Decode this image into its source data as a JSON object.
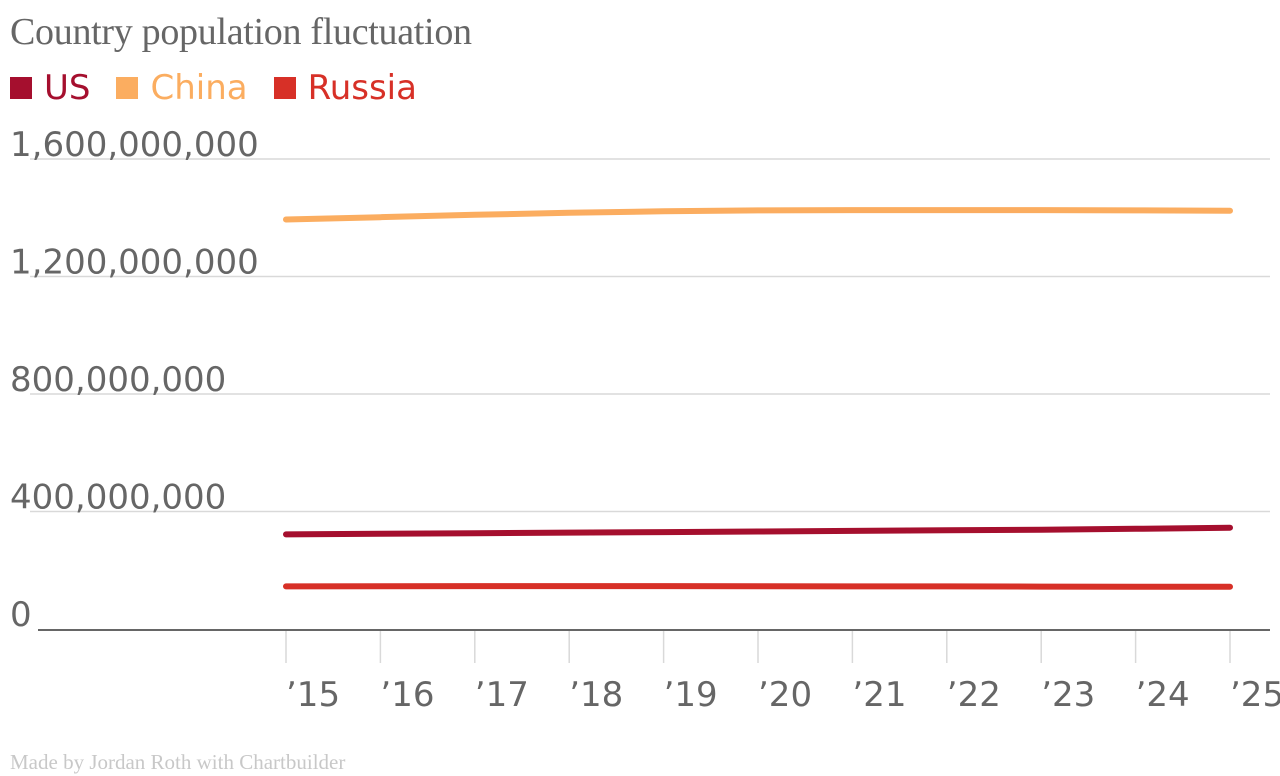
{
  "chart_data": {
    "type": "line",
    "title": "Country population fluctuation",
    "credit": "Made by Jordan Roth with Chartbuilder",
    "x": [
      "’15",
      "’16",
      "’17",
      "’18",
      "’19",
      "’20",
      "’21",
      "’22",
      "’23",
      "’24",
      "’25"
    ],
    "years": [
      2015,
      2016,
      2017,
      2018,
      2019,
      2020,
      2021,
      2022,
      2023,
      2024,
      2025
    ],
    "ylim": [
      0,
      1600000000
    ],
    "yticks": [
      0,
      400000000,
      800000000,
      1200000000,
      1600000000
    ],
    "ytick_labels": [
      "0",
      "400,000,000",
      "800,000,000",
      "1,200,000,000",
      "1,600,000,000"
    ],
    "grid": true,
    "legend_position": "top-left",
    "series": [
      {
        "name": "US",
        "color": "#a50f2e",
        "values": [
          322000000,
          324000000,
          326000000,
          328000000,
          330000000,
          332000000,
          334000000,
          336000000,
          338000000,
          341000000,
          345000000
        ]
      },
      {
        "name": "China",
        "color": "#fbad60",
        "values": [
          1394000000,
          1402000000,
          1410000000,
          1417000000,
          1422000000,
          1425000000,
          1426000000,
          1426000000,
          1426000000,
          1425000000,
          1424000000
        ]
      },
      {
        "name": "Russia",
        "color": "#d73027",
        "values": [
          145000000,
          145500000,
          146000000,
          146000000,
          146000000,
          145500000,
          145000000,
          145000000,
          144500000,
          144000000,
          144000000
        ]
      }
    ]
  }
}
